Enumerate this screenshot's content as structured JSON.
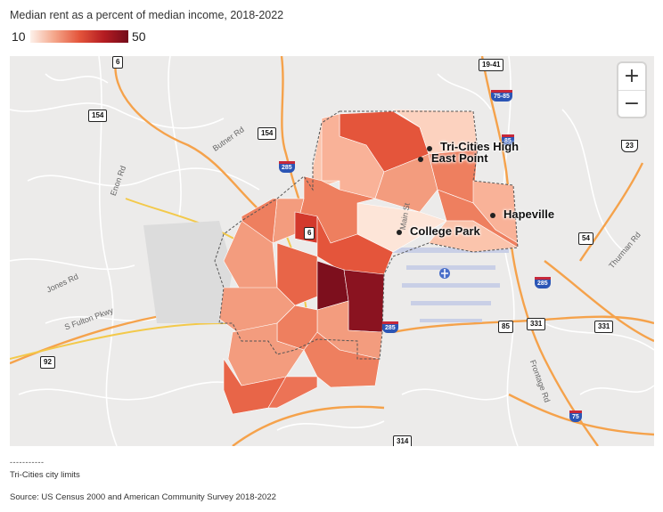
{
  "title": "Median rent as a percent of median income, 2018-2022",
  "legend": {
    "min": "10",
    "max": "50",
    "color_low": "#fdf1ea",
    "color_high": "#730b1a"
  },
  "zoom": {
    "in": "+",
    "out": "−"
  },
  "places": {
    "tri_cities_high": "Tri-Cities High",
    "east_point": "East Point",
    "hapeville": "Hapeville",
    "college_park": "College Park"
  },
  "roads": {
    "butner": "Butner Rd",
    "enon": "Enon Rd",
    "jones": "Jones Rd",
    "s_fulton": "S Fulton Pkwy",
    "main": "Main St",
    "thurman": "Thurman Rd",
    "frontage": "Frontage Rd"
  },
  "shields": {
    "s6_top": "6",
    "s154_a": "154",
    "s154_b": "154",
    "s19_41": "19-41",
    "i75_85": "75-85",
    "i85_top": "85",
    "i285_a": "285",
    "us23": "23",
    "s54": "54",
    "i285_b": "285",
    "s6_mid": "6",
    "i285_c": "285",
    "s85": "85",
    "s331_a": "331",
    "s331_b": "331",
    "s92": "92",
    "i75": "75",
    "s314": "314"
  },
  "footer": {
    "dash": "-----------",
    "city_limits": "Tri-Cities city limits",
    "source": "Source: US Census 2000 and American Community Survey 2018-2022"
  }
}
